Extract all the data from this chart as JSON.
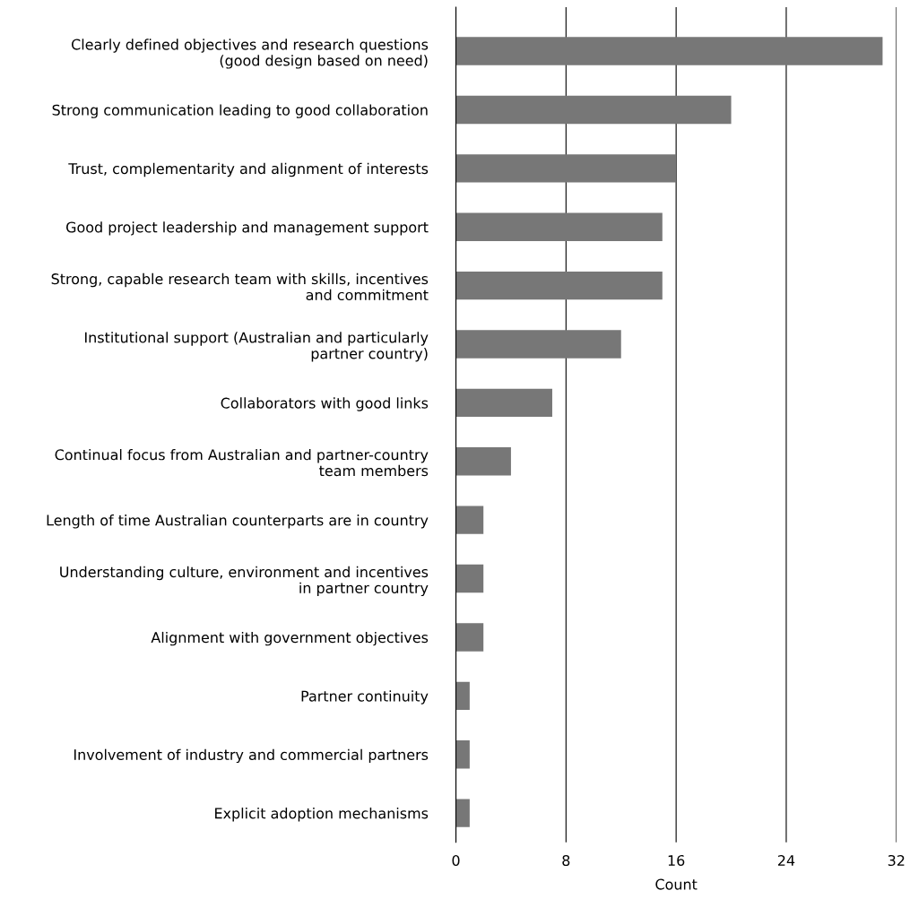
{
  "chart_data": {
    "type": "bar",
    "orientation": "horizontal",
    "xlabel": "Count",
    "categories": [
      "Clearly defined objectives and research questions\n(good design based on need)",
      "Strong communication leading to good collaboration",
      "Trust, complementarity and alignment of interests",
      "Good project leadership and management support",
      "Strong, capable research team with skills, incentives\nand commitment",
      "Institutional support (Australian and particularly\npartner country)",
      "Collaborators with good links",
      "Continual focus from Australian and partner-country\nteam members",
      "Length of time Australian counterparts are in country",
      "Understanding culture, environment and incentives\nin partner country",
      "Alignment with government objectives",
      "Partner continuity",
      "Involvement of industry and commercial partners",
      "Explicit adoption mechanisms"
    ],
    "values": [
      31,
      20,
      16,
      15,
      15,
      12,
      7,
      4,
      2,
      2,
      2,
      1,
      1,
      1
    ],
    "color": "#777777",
    "xlim": [
      0,
      32
    ],
    "xticks": [
      0,
      8,
      16,
      24,
      32
    ],
    "grid": "x",
    "legend": false
  }
}
